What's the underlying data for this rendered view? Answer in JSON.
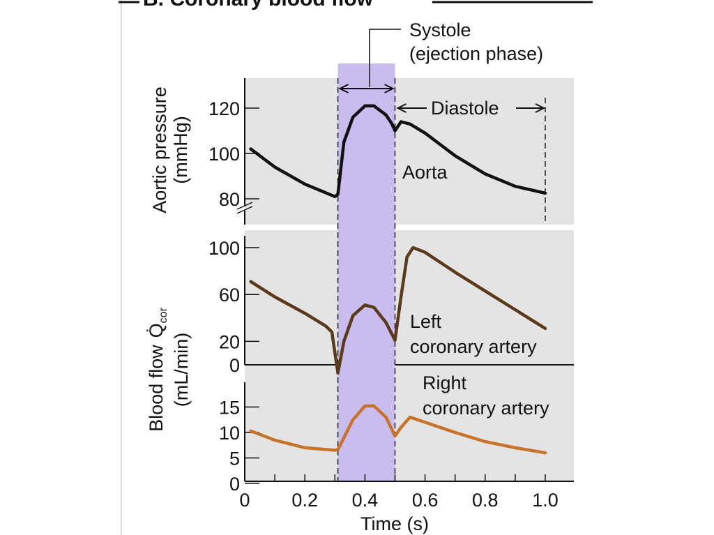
{
  "chart_data": [
    {
      "type": "line",
      "title": "B. Coronary blood flow",
      "ylabel": "Aortic pressure",
      "ylabel_unit": "(mmHg)",
      "xlabel": "Time (s)",
      "xlim": [
        0,
        1.1
      ],
      "ylim": [
        75,
        130
      ],
      "yticks": [
        "80",
        "100",
        "120"
      ],
      "axis_break": true,
      "background": "#e4e4e4",
      "series": [
        {
          "name": "Aorta",
          "color": "#111111",
          "x": [
            0.02,
            0.1,
            0.2,
            0.3,
            0.31,
            0.33,
            0.36,
            0.4,
            0.43,
            0.47,
            0.49,
            0.5,
            0.52,
            0.55,
            0.6,
            0.7,
            0.8,
            0.9,
            1.0
          ],
          "y": [
            102,
            94,
            86.5,
            81,
            82,
            105,
            116,
            121,
            121,
            117,
            113,
            110,
            114,
            113,
            109,
            99,
            91,
            85.5,
            82.5
          ]
        }
      ]
    },
    {
      "type": "line",
      "ylabel": "Blood flow",
      "ylabel_symbol": "Q̇",
      "ylabel_sub": "cor",
      "ylabel_unit": "(mL/min)",
      "ylim": [
        -10,
        105
      ],
      "yticks": [
        "0",
        "20",
        "60",
        "100"
      ],
      "series": [
        {
          "name": "Left coronary artery",
          "color": "#5a3a1a",
          "x": [
            0.02,
            0.1,
            0.2,
            0.27,
            0.29,
            0.31,
            0.33,
            0.36,
            0.4,
            0.43,
            0.47,
            0.5,
            0.52,
            0.54,
            0.56,
            0.6,
            0.7,
            0.8,
            0.9,
            1.0
          ],
          "y": [
            71,
            58,
            44,
            33,
            28,
            -7,
            20,
            42,
            51,
            49,
            36,
            21,
            58,
            92,
            100,
            96,
            79,
            63,
            47,
            31
          ]
        }
      ]
    },
    {
      "type": "line",
      "ylim": [
        0,
        18
      ],
      "yticks": [
        "0",
        "5",
        "10",
        "15"
      ],
      "xticks": [
        "0",
        "0.2",
        "0.4",
        "0.6",
        "0.8",
        "1.0"
      ],
      "series": [
        {
          "name": "Right coronary artery",
          "color": "#c8732a",
          "x": [
            0.02,
            0.1,
            0.2,
            0.3,
            0.31,
            0.36,
            0.4,
            0.43,
            0.47,
            0.5,
            0.52,
            0.55,
            0.6,
            0.7,
            0.8,
            0.9,
            1.0
          ],
          "y": [
            10.3,
            8.5,
            7,
            6.5,
            6.6,
            12.5,
            15.2,
            15.2,
            13,
            9.3,
            11,
            13,
            12,
            10,
            8.2,
            7,
            6
          ]
        }
      ]
    }
  ],
  "annotations": {
    "systole_line1": "Systole",
    "systole_line2": "(ejection phase)",
    "systole_range": [
      0.31,
      0.5
    ],
    "systole_color": "#c9bdf0",
    "diastole": "Diastole",
    "diastole_end": 1.0,
    "aorta_label": "Aorta",
    "left_label_1": "Left",
    "left_label_2": "coronary artery",
    "right_label_1": "Right",
    "right_label_2": "coronary artery"
  }
}
